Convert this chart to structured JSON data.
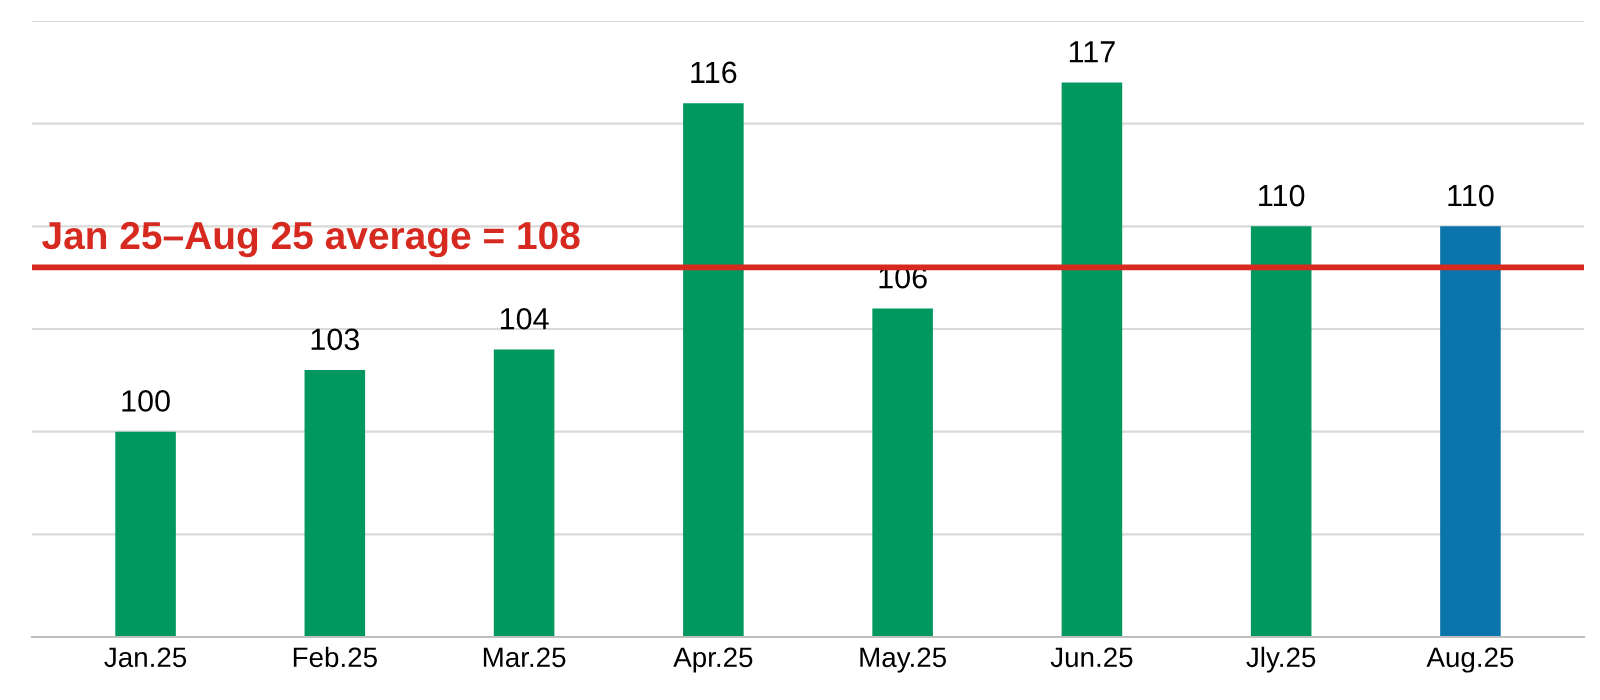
{
  "chart_data": {
    "type": "bar",
    "categories": [
      "Jan.25",
      "Feb.25",
      "Mar.25",
      "Apr.25",
      "May.25",
      "Jun.25",
      "Jly.25",
      "Aug.25"
    ],
    "values": [
      100,
      103,
      104,
      116,
      106,
      117,
      110,
      110
    ],
    "colors": [
      "#00985f",
      "#00985f",
      "#00985f",
      "#00985f",
      "#00985f",
      "#00985f",
      "#00985f",
      "#0a74ab"
    ],
    "data_labels": true,
    "ylim": [
      90,
      120
    ],
    "yticks": [
      {
        "value": 90,
        "label": null
      },
      {
        "value": 95,
        "label": null
      },
      {
        "value": 100,
        "label": null
      },
      {
        "value": 105,
        "label": null
      },
      {
        "value": 110,
        "label": null
      },
      {
        "value": 115,
        "label": null
      },
      {
        "value": 120,
        "label": null
      }
    ],
    "tick_labels": "x",
    "grid": "y",
    "ref_lines": [
      {
        "axis": "y",
        "value": 108,
        "label": "Jan 25–Aug 25 average = 108",
        "color": "#d62a20"
      }
    ]
  }
}
